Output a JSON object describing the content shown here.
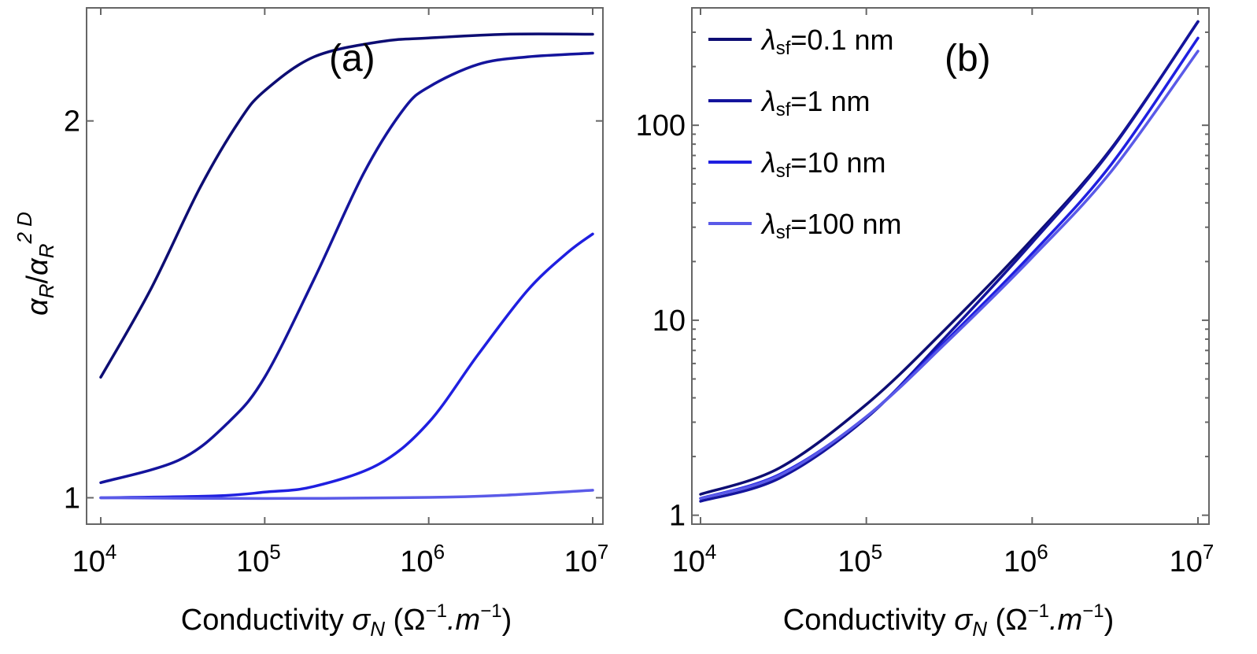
{
  "chart_data": [
    {
      "type": "line",
      "panel": "(a)",
      "xscale": "log",
      "xlim": [
        10000,
        10000000
      ],
      "ylim": [
        0.93,
        2.3
      ],
      "ylabel_parts": {
        "a1": "α",
        "s1": "R",
        "slash": "/",
        "a2": "α",
        "s2": "R",
        "sup": "2 D"
      },
      "xlabel_parts": {
        "main": "Conductivity ",
        "sym": "σ",
        "sub": "N",
        "open": " (Ω",
        "sup1": "−1",
        "mid": ".m",
        "sup2": "−1",
        "close": ")"
      },
      "xticks": [
        {
          "value": 10000,
          "base": "10",
          "exp": "4"
        },
        {
          "value": 100000,
          "base": "10",
          "exp": "5"
        },
        {
          "value": 1000000,
          "base": "10",
          "exp": "6"
        },
        {
          "value": 10000000,
          "base": "10",
          "exp": "7"
        }
      ],
      "yticks": [
        {
          "value": 1,
          "label": "1"
        },
        {
          "value": 2,
          "label": "2"
        }
      ],
      "series": [
        {
          "name": "λsf=0.1 nm",
          "color": "#0d0d73",
          "x": [
            10000,
            20000,
            40000,
            70000,
            100000,
            200000,
            500000,
            1000000,
            3000000,
            10000000
          ],
          "y": [
            1.32,
            1.55,
            1.82,
            2.0,
            2.08,
            2.17,
            2.21,
            2.22,
            2.23,
            2.23
          ]
        },
        {
          "name": "λsf=1 nm",
          "color": "#14149c",
          "x": [
            10000,
            30000,
            60000,
            100000,
            200000,
            400000,
            700000,
            1000000,
            2000000,
            4000000,
            10000000
          ],
          "y": [
            1.04,
            1.1,
            1.2,
            1.32,
            1.58,
            1.86,
            2.03,
            2.09,
            2.15,
            2.17,
            2.18
          ]
        },
        {
          "name": "λsf=10 nm",
          "color": "#1f1fe0",
          "x": [
            10000,
            50000,
            100000,
            200000,
            500000,
            1000000,
            2000000,
            4000000,
            7000000,
            10000000
          ],
          "y": [
            1.0,
            1.005,
            1.015,
            1.03,
            1.09,
            1.2,
            1.38,
            1.55,
            1.65,
            1.7
          ]
        },
        {
          "name": "λsf=100 nm",
          "color": "#5a5ae8",
          "x": [
            10000,
            100000,
            1000000,
            3000000,
            10000000
          ],
          "y": [
            1.0,
            0.998,
            1.001,
            1.007,
            1.02
          ]
        }
      ]
    },
    {
      "type": "line",
      "panel": "(b)",
      "xscale": "log",
      "yscale": "log",
      "xlim": [
        10000,
        10000000
      ],
      "ylim": [
        0.9,
        400
      ],
      "xlabel_parts": {
        "main": "Conductivity ",
        "sym": "σ",
        "sub": "N",
        "open": " (Ω",
        "sup1": "−1",
        "mid": ".m",
        "sup2": "−1",
        "close": ")"
      },
      "xticks": [
        {
          "value": 10000,
          "base": "10",
          "exp": "4"
        },
        {
          "value": 100000,
          "base": "10",
          "exp": "5"
        },
        {
          "value": 1000000,
          "base": "10",
          "exp": "6"
        },
        {
          "value": 10000000,
          "base": "10",
          "exp": "7"
        }
      ],
      "yticks": [
        {
          "value": 1,
          "label": "1"
        },
        {
          "value": 10,
          "label": "10"
        },
        {
          "value": 100,
          "label": "100"
        }
      ],
      "legend_position": "top-left",
      "series": [
        {
          "name": "λsf=0.1 nm",
          "legend_sym": "λ",
          "legend_sub": "sf",
          "legend_rest": "=0.1 nm",
          "color": "#0d0d73",
          "x": [
            10000,
            30000,
            100000,
            300000,
            1000000,
            3000000,
            10000000
          ],
          "y": [
            1.28,
            1.75,
            3.7,
            9.0,
            26,
            76,
            340
          ]
        },
        {
          "name": "λsf=1 nm",
          "legend_sym": "λ",
          "legend_sub": "sf",
          "legend_rest": "=1 nm",
          "color": "#14149c",
          "x": [
            10000,
            30000,
            100000,
            300000,
            1000000,
            3000000,
            10000000
          ],
          "y": [
            1.18,
            1.55,
            3.15,
            8.2,
            25,
            75,
            340
          ]
        },
        {
          "name": "λsf=10 nm",
          "legend_sym": "λ",
          "legend_sub": "sf",
          "legend_rest": "=10 nm",
          "color": "#1f1fe0",
          "x": [
            10000,
            30000,
            100000,
            300000,
            1000000,
            3000000,
            10000000
          ],
          "y": [
            1.22,
            1.62,
            3.2,
            7.8,
            22,
            63,
            280
          ]
        },
        {
          "name": "λsf=100 nm",
          "legend_sym": "λ",
          "legend_sub": "sf",
          "legend_rest": "=100 nm",
          "color": "#5a5ae8",
          "x": [
            10000,
            30000,
            100000,
            300000,
            1000000,
            3000000,
            10000000
          ],
          "y": [
            1.22,
            1.6,
            3.2,
            7.6,
            21,
            58,
            240
          ]
        }
      ]
    }
  ]
}
